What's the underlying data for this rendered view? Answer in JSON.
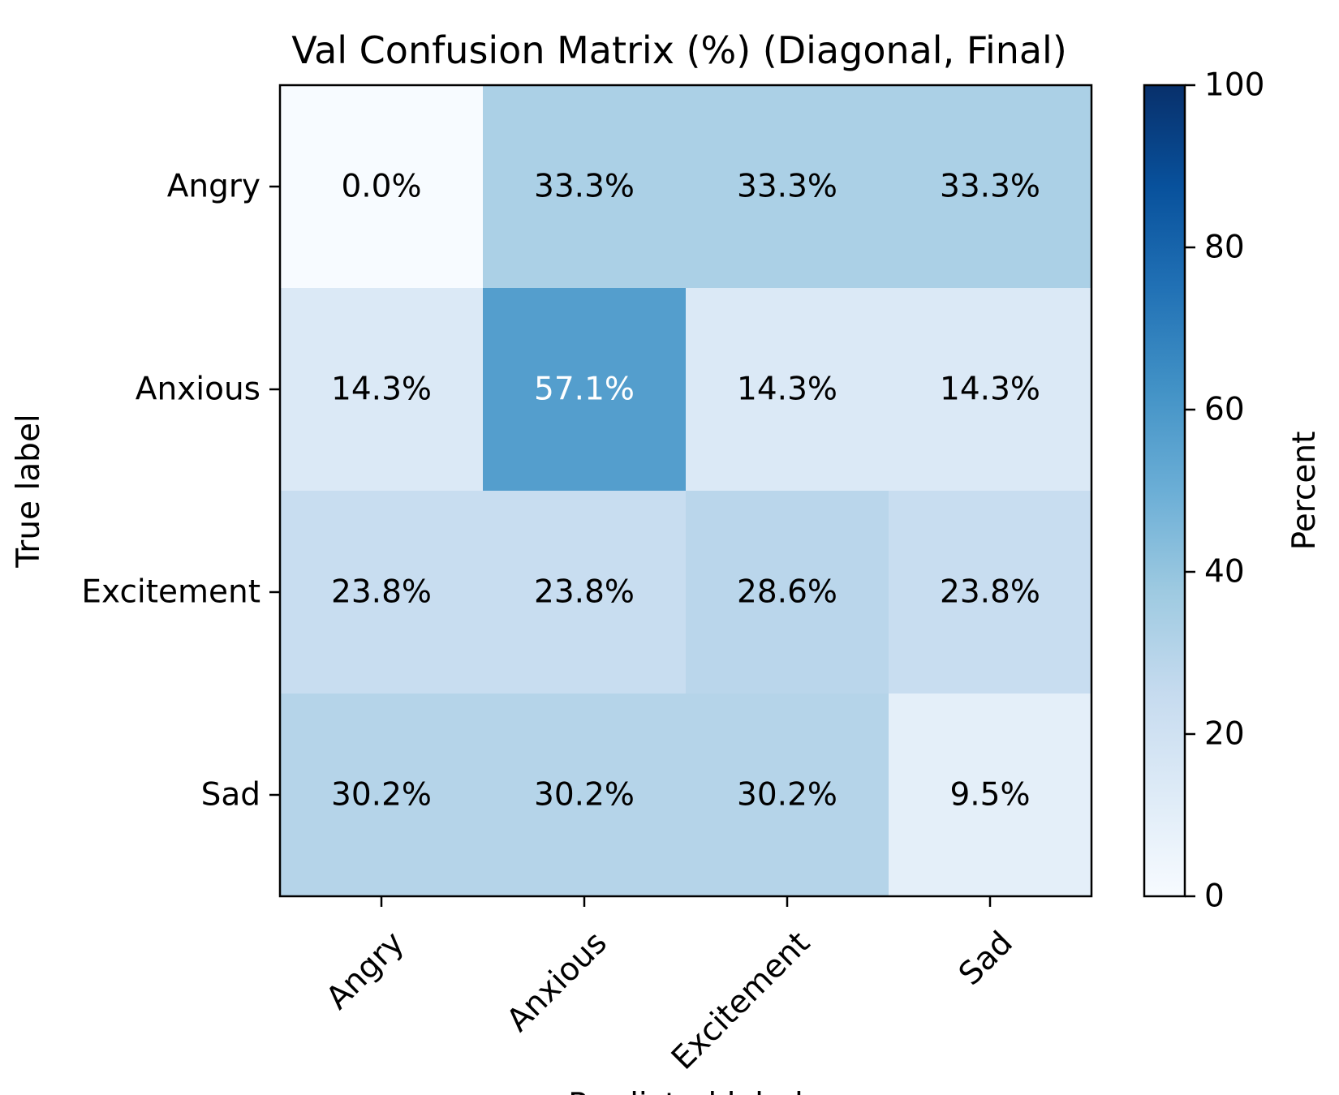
{
  "chart_data": {
    "type": "heatmap",
    "title": "Val Confusion Matrix (%) (Diagonal, Final)",
    "xlabel": "Predicted label",
    "ylabel": "True label",
    "x_categories": [
      "Angry",
      "Anxious",
      "Excitement",
      "Sad"
    ],
    "y_categories": [
      "Angry",
      "Anxious",
      "Excitement",
      "Sad"
    ],
    "values": [
      [
        0.0,
        33.3,
        33.3,
        33.3
      ],
      [
        14.3,
        57.1,
        14.3,
        14.3
      ],
      [
        23.8,
        23.8,
        28.6,
        23.8
      ],
      [
        30.2,
        30.2,
        30.2,
        9.5
      ]
    ],
    "cell_labels": [
      [
        "0.0%",
        "33.3%",
        "33.3%",
        "33.3%"
      ],
      [
        "14.3%",
        "57.1%",
        "14.3%",
        "14.3%"
      ],
      [
        "23.8%",
        "23.8%",
        "28.6%",
        "23.8%"
      ],
      [
        "30.2%",
        "30.2%",
        "30.2%",
        "9.5%"
      ]
    ],
    "colorbar": {
      "label": "Percent",
      "range": [
        0,
        100
      ],
      "ticks": [
        "0",
        "20",
        "40",
        "60",
        "80",
        "100"
      ],
      "colormap": "Blues"
    },
    "grid": false
  }
}
